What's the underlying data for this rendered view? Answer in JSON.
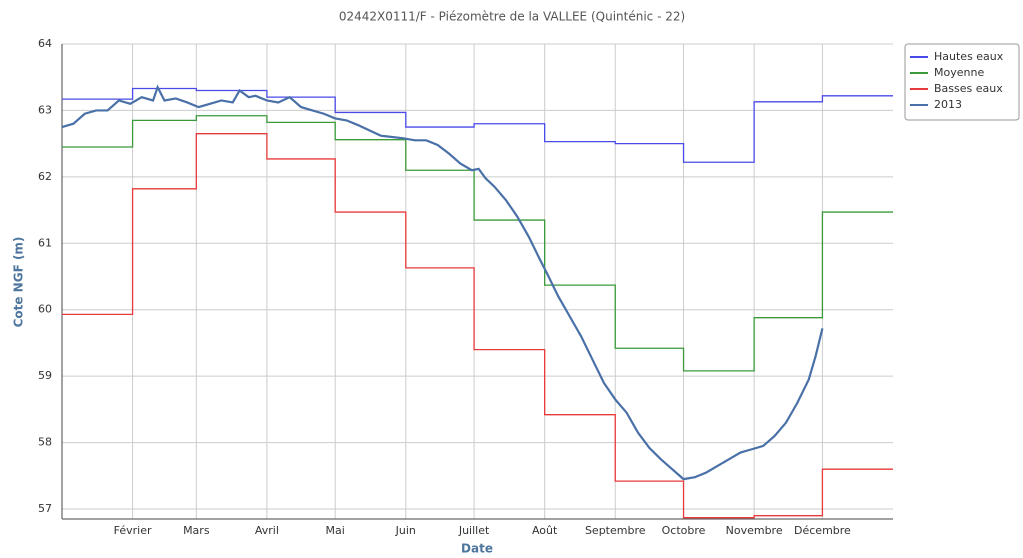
{
  "chart_data": {
    "type": "line",
    "title": "02442X0111/F - Piézomètre de la VALLEE (Quinténic - 22)",
    "x_label": "Date",
    "y_label": "Cote NGF (m)",
    "xlim": [
      0,
      365
    ],
    "ylim": [
      56.85,
      64
    ],
    "xticks": [
      {
        "value": 31,
        "label": "Février"
      },
      {
        "value": 59,
        "label": "Mars"
      },
      {
        "value": 90,
        "label": "Avril"
      },
      {
        "value": 120,
        "label": "Mai"
      },
      {
        "value": 151,
        "label": "Juin"
      },
      {
        "value": 181,
        "label": "Juillet"
      },
      {
        "value": 212,
        "label": "Août"
      },
      {
        "value": 243,
        "label": "Septembre"
      },
      {
        "value": 273,
        "label": "Octobre"
      },
      {
        "value": 304,
        "label": "Novembre"
      },
      {
        "value": 334,
        "label": "Décembre"
      }
    ],
    "yticks": [
      57,
      58,
      59,
      60,
      61,
      62,
      63,
      64
    ],
    "grid": true,
    "legend": "outside-top-right",
    "series": [
      {
        "name": "Hautes eaux",
        "color": "#4a4ae8",
        "step": true,
        "x": [
          0,
          31,
          59,
          90,
          120,
          151,
          181,
          212,
          243,
          273,
          304,
          334
        ],
        "values": [
          63.17,
          63.33,
          63.3,
          63.2,
          62.97,
          62.75,
          62.8,
          62.53,
          62.5,
          62.22,
          63.13,
          63.22
        ]
      },
      {
        "name": "Moyenne",
        "color": "#3a9a3a",
        "step": true,
        "x": [
          0,
          31,
          59,
          90,
          120,
          151,
          181,
          212,
          243,
          273,
          304,
          334
        ],
        "values": [
          62.45,
          62.85,
          62.92,
          62.82,
          62.56,
          62.1,
          61.35,
          60.37,
          59.42,
          59.08,
          59.88,
          61.47
        ]
      },
      {
        "name": "Basses eaux",
        "color": "#e83a3a",
        "step": true,
        "x": [
          0,
          31,
          59,
          90,
          120,
          151,
          181,
          212,
          243,
          273,
          304,
          334
        ],
        "values": [
          59.93,
          61.82,
          62.65,
          62.27,
          61.47,
          60.63,
          59.4,
          58.42,
          57.42,
          56.87,
          56.9,
          57.6
        ]
      },
      {
        "name": "2013",
        "color": "#4a70a8",
        "step": false,
        "x": [
          0,
          5,
          10,
          15,
          20,
          25,
          30,
          35,
          40,
          42,
          45,
          50,
          55,
          60,
          65,
          70,
          75,
          78,
          82,
          85,
          90,
          95,
          100,
          105,
          110,
          115,
          120,
          125,
          130,
          135,
          140,
          145,
          150,
          155,
          160,
          165,
          170,
          175,
          180,
          183,
          186,
          190,
          195,
          200,
          205,
          210,
          213,
          218,
          223,
          228,
          233,
          238,
          243,
          248,
          253,
          258,
          263,
          268,
          273,
          278,
          283,
          288,
          293,
          298,
          303,
          308,
          313,
          318,
          323,
          328,
          331,
          334
        ],
        "values": [
          62.75,
          62.8,
          62.95,
          63.0,
          63.0,
          63.15,
          63.1,
          63.2,
          63.15,
          63.35,
          63.15,
          63.18,
          63.12,
          63.05,
          63.1,
          63.15,
          63.12,
          63.3,
          63.2,
          63.22,
          63.15,
          63.12,
          63.2,
          63.05,
          63.0,
          62.95,
          62.88,
          62.85,
          62.78,
          62.7,
          62.62,
          62.6,
          62.58,
          62.55,
          62.55,
          62.48,
          62.35,
          62.2,
          62.1,
          62.12,
          61.98,
          61.85,
          61.65,
          61.4,
          61.1,
          60.75,
          60.55,
          60.2,
          59.9,
          59.6,
          59.25,
          58.9,
          58.65,
          58.45,
          58.15,
          57.92,
          57.75,
          57.6,
          57.45,
          57.48,
          57.55,
          57.65,
          57.75,
          57.85,
          57.9,
          57.95,
          58.1,
          58.3,
          58.6,
          58.95,
          59.3,
          59.72
        ]
      }
    ]
  }
}
